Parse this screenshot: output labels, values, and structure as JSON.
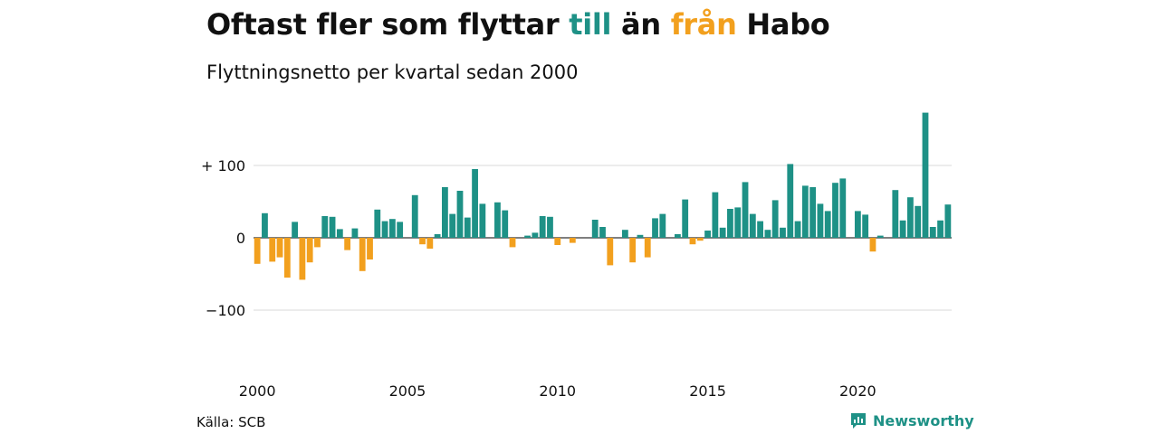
{
  "header": {
    "title_part1": "Oftast fler som flyttar ",
    "title_till": "till",
    "title_part2": " än ",
    "title_fran": "från",
    "title_part3": " Habo",
    "subtitle": "Flyttningsnetto per kvartal sedan 2000"
  },
  "footer": {
    "source": "Källa: SCB",
    "brand": "Newsworthy"
  },
  "colors": {
    "positive": "#1e9186",
    "negative": "#f2a01e",
    "grid": "#d9d9d9",
    "text": "#111111"
  },
  "chart_data": {
    "type": "bar",
    "y_ticks": [
      100,
      0,
      -100
    ],
    "y_tick_labels": [
      "+ 100",
      "0",
      "−100"
    ],
    "x_ticks": [
      2000,
      2005,
      2010,
      2015,
      2020
    ],
    "x_tick_labels": [
      "2000",
      "2005",
      "2010",
      "2015",
      "2020"
    ],
    "ylim": [
      -130,
      175
    ],
    "start_year": 2000,
    "grid": true,
    "values": [
      -36,
      34,
      -33,
      -27,
      -55,
      22,
      -58,
      -34,
      -13,
      30,
      29,
      12,
      -17,
      13,
      -46,
      -30,
      39,
      23,
      26,
      22,
      0,
      59,
      -9,
      -15,
      5,
      70,
      33,
      65,
      28,
      95,
      47,
      0,
      49,
      38,
      -13,
      0,
      3,
      7,
      30,
      29,
      -10,
      0,
      -7,
      0,
      0,
      25,
      15,
      -38,
      0,
      11,
      -34,
      4,
      -27,
      27,
      33,
      0,
      5,
      53,
      -9,
      -4,
      10,
      63,
      14,
      40,
      42,
      77,
      33,
      23,
      11,
      52,
      14,
      102,
      23,
      72,
      70,
      47,
      37,
      76,
      82,
      0,
      37,
      32,
      -19,
      3,
      0,
      66,
      24,
      56,
      44,
      173,
      15,
      24,
      46
    ]
  }
}
